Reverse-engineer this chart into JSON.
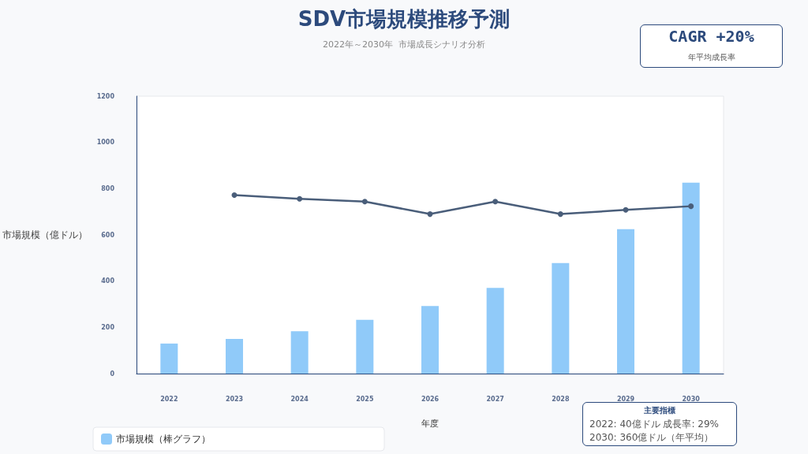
{
  "chart_data": {
    "type": "bar",
    "title": "SDV市場規模推移予測",
    "subtitle": "2022年～2030年  市場成長シナリオ分析",
    "xlabel": "年度",
    "ylabel": "市場規模（億ドル）",
    "categories": [
      "2022",
      "2023",
      "2024",
      "2025",
      "2026",
      "2027",
      "2028",
      "2029",
      "2030"
    ],
    "series": [
      {
        "name": "市場規模（棒グラフ）",
        "color": "#90caf9",
        "values": [
          130,
          150,
          183,
          233,
          292,
          371,
          478,
          625,
          826
        ]
      },
      {
        "type": "line",
        "color": "#4a5e7a",
        "marker": "circle",
        "values": [
          null,
          772,
          756,
          744,
          690,
          744,
          690,
          708,
          724
        ]
      }
    ],
    "ylim": [
      0,
      1200
    ],
    "yticks": [
      0,
      200,
      400,
      600,
      800,
      1000,
      1200
    ],
    "grid": false,
    "legend": "bottom left",
    "annotations": [
      "CAGR +20%",
      "年平均成長率",
      "主要指標",
      "2022: 40億ドル  成長率: 29%",
      "2030: 360億ドル（年平均）"
    ]
  }
}
